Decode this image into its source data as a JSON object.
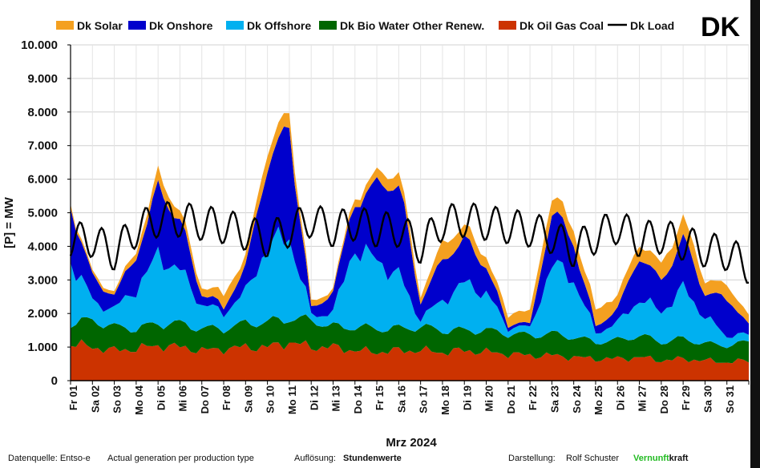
{
  "chart_data": {
    "type": "area",
    "stacked": true,
    "country": "DK",
    "xlabel": "Mrz 2024",
    "ylabel": "[P] = MW",
    "ylim": [
      0,
      10000
    ],
    "y_ticks": [
      "0",
      "1.000",
      "2.000",
      "3.000",
      "4.000",
      "5.000",
      "6.000",
      "7.000",
      "8.000",
      "9.000",
      "10.000"
    ],
    "x_tick_labels": [
      "Fr 01",
      "Sa 02",
      "So 03",
      "Mo 04",
      "Di 05",
      "Mi 06",
      "Do 07",
      "Fr 08",
      "Sa 09",
      "So 10",
      "Mo 11",
      "Di 12",
      "Mi 13",
      "Do 14",
      "Fr 15",
      "Sa 16",
      "So 17",
      "Mo 18",
      "Di 19",
      "Mi 20",
      "Do 21",
      "Fr 22",
      "Sa 23",
      "So 24",
      "Mo 25",
      "Di 26",
      "Mi 27",
      "Do 28",
      "Fr 29",
      "Sa 30",
      "So 31"
    ],
    "day_points": [
      0,
      1,
      2,
      3,
      4,
      5,
      6,
      7,
      8,
      9,
      10,
      11,
      12,
      13,
      14,
      15,
      16,
      17,
      18,
      19,
      20,
      21,
      22,
      23,
      24,
      25,
      26,
      27,
      28,
      29,
      30,
      31
    ],
    "series": [
      {
        "name": "Dk Oil Gas Coal",
        "color": "#cc3300",
        "values": [
          1100,
          1000,
          900,
          950,
          1050,
          1000,
          900,
          950,
          1000,
          1000,
          1150,
          1000,
          1000,
          900,
          850,
          900,
          900,
          850,
          900,
          850,
          800,
          750,
          750,
          700,
          650,
          650,
          700,
          600,
          650,
          600,
          550,
          600
        ]
      },
      {
        "name": "Dk Bio Water Other Renew.",
        "color": "#006600",
        "values": [
          600,
          800,
          700,
          600,
          650,
          700,
          650,
          600,
          700,
          750,
          700,
          800,
          600,
          700,
          700,
          650,
          700,
          650,
          600,
          650,
          600,
          600,
          650,
          600,
          500,
          550,
          650,
          550,
          600,
          500,
          500,
          550
        ]
      },
      {
        "name": "Dk Offshore",
        "color": "#00b0f0",
        "values": [
          1900,
          600,
          500,
          1200,
          2000,
          1600,
          700,
          500,
          900,
          2300,
          2400,
          200,
          400,
          2400,
          2000,
          1600,
          200,
          900,
          1400,
          1100,
          200,
          200,
          2100,
          1700,
          300,
          500,
          1100,
          900,
          1500,
          800,
          300,
          200
        ]
      },
      {
        "name": "Dk Onshore",
        "color": "#0000cc",
        "values": [
          1600,
          700,
          400,
          1000,
          2000,
          1500,
          300,
          200,
          700,
          2500,
          3200,
          200,
          600,
          1400,
          2200,
          2800,
          500,
          1200,
          1300,
          800,
          100,
          100,
          1600,
          1100,
          200,
          400,
          1300,
          900,
          1500,
          700,
          1100,
          300
        ]
      },
      {
        "name": "Dk Solar",
        "color": "#f4a020",
        "values": [
          100,
          100,
          100,
          200,
          400,
          300,
          200,
          400,
          300,
          500,
          400,
          200,
          100,
          200,
          300,
          400,
          200,
          500,
          400,
          300,
          300,
          400,
          500,
          400,
          500,
          400,
          400,
          500,
          600,
          400,
          400,
          300
        ]
      }
    ],
    "load": {
      "name": "Dk Load",
      "color": "#000000",
      "values": [
        4200,
        4200,
        3800,
        4500,
        4800,
        4800,
        4700,
        4600,
        4400,
        4200,
        4500,
        4800,
        4500,
        4700,
        4500,
        4500,
        4000,
        4700,
        4800,
        4700,
        4600,
        4500,
        4300,
        3900,
        4300,
        4600,
        4200,
        4300,
        4100,
        3900,
        3800,
        3400
      ]
    },
    "legend": [
      {
        "label": "Dk Solar",
        "color": "#f4a020",
        "kind": "box"
      },
      {
        "label": "Dk Onshore",
        "color": "#0000cc",
        "kind": "box"
      },
      {
        "label": "Dk Offshore",
        "color": "#00b0f0",
        "kind": "box"
      },
      {
        "label": "Dk Bio Water Other Renew.",
        "color": "#006600",
        "kind": "box"
      },
      {
        "label": "Dk Oil Gas Coal",
        "color": "#cc3300",
        "kind": "box"
      },
      {
        "label": "Dk Load",
        "color": "#000000",
        "kind": "line"
      }
    ]
  },
  "footer": {
    "source_label": "Datenquelle: Entso-e",
    "source_text": "Actual generation per production type",
    "resolution_label": "Auflösung:",
    "resolution_value": "Stundenwerte",
    "author_label": "Darstellung:",
    "author_name": "Rolf Schuster",
    "brand_green": "Vernunft",
    "brand_black": "kraft",
    "brand_color": "#22bb22"
  }
}
